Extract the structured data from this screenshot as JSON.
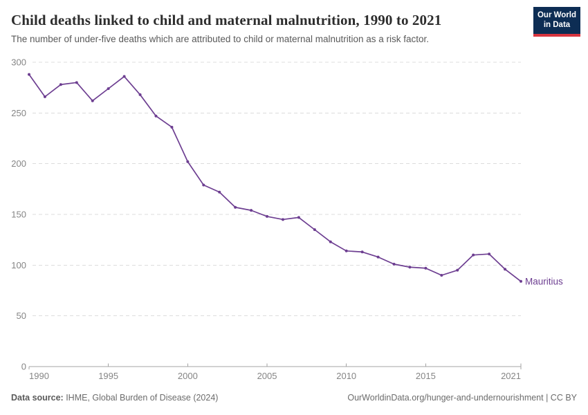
{
  "header": {
    "title": "Child deaths linked to child and maternal malnutrition, 1990 to 2021",
    "subtitle": "The number of under-five deaths which are attributed to child or maternal malnutrition as a risk factor.",
    "logo": {
      "line1": "Our World",
      "line2": "in Data"
    }
  },
  "chart_data": {
    "type": "line",
    "title": "Child deaths linked to child and maternal malnutrition, 1990 to 2021",
    "xlabel": "",
    "ylabel": "",
    "x": [
      1990,
      1991,
      1992,
      1993,
      1994,
      1995,
      1996,
      1997,
      1998,
      1999,
      2000,
      2001,
      2002,
      2003,
      2004,
      2005,
      2006,
      2007,
      2008,
      2009,
      2010,
      2011,
      2012,
      2013,
      2014,
      2015,
      2016,
      2017,
      2018,
      2019,
      2020,
      2021
    ],
    "series": [
      {
        "name": "Mauritius",
        "color": "#6d3e91",
        "values": [
          288,
          266,
          278,
          280,
          262,
          274,
          286,
          268,
          247,
          236,
          202,
          179,
          172,
          157,
          154,
          148,
          145,
          147,
          135,
          123,
          114,
          113,
          108,
          101,
          98,
          97,
          90,
          95,
          110,
          111,
          96,
          84
        ]
      }
    ],
    "ylim": [
      0,
      300
    ],
    "yticks": [
      0,
      50,
      100,
      150,
      200,
      250,
      300
    ],
    "xticks": [
      1990,
      1995,
      2000,
      2005,
      2010,
      2015,
      2021
    ],
    "grid": "horizontal-dashed",
    "legend": "line-end-label"
  },
  "footer": {
    "source_label": "Data source:",
    "source_text": " IHME, Global Burden of Disease (2024)",
    "link_text": "OurWorldinData.org/hunger-and-undernourishment | CC BY"
  },
  "colors": {
    "line": "#6d3e91",
    "grid": "#dcdcdc",
    "axis": "#a3a3a3",
    "tick_label": "#858585",
    "series_label": "#6d3e91",
    "logo_bg": "#0d2d54",
    "logo_bar": "#d8353f"
  }
}
